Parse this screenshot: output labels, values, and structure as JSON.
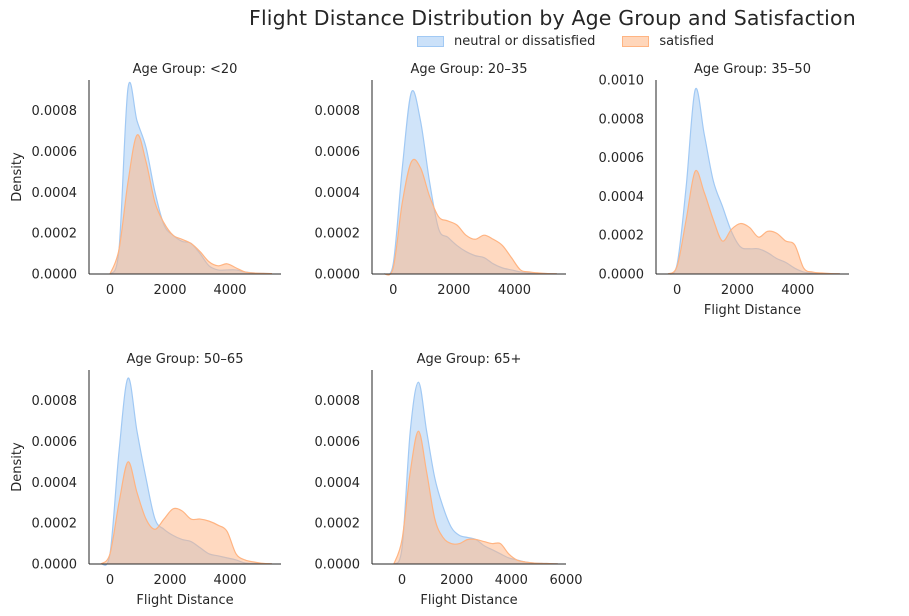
{
  "chart_data": {
    "type": "area",
    "title": "Flight Distance Distribution by Age Group and Satisfaction",
    "legend": {
      "placement": "top-center"
    },
    "series_names": [
      "neutral or dissatisfied",
      "satisfied"
    ],
    "colors": {
      "neutral or dissatisfied": "#a1c9f4",
      "satisfied": "#ffb482"
    },
    "grid": false,
    "x_grid": [
      -300,
      0,
      300,
      600,
      900,
      1200,
      1500,
      1800,
      2100,
      2400,
      2700,
      3000,
      3300,
      3600,
      3900,
      4200,
      4500,
      4800,
      5100,
      5400,
      5700,
      6000
    ],
    "panels": [
      {
        "title": "Age Group: <20",
        "xlabel": "",
        "ylabel": "Density",
        "xlim": [
          -700,
          5700
        ],
        "ylim": [
          0,
          0.00095
        ],
        "xticks": [
          0,
          2000,
          4000
        ],
        "xtick_labels": [
          "0",
          "2000",
          "4000"
        ],
        "yticks": [
          0,
          0.0002,
          0.0004,
          0.0006,
          0.0008
        ],
        "ytick_labels": [
          "0.0000",
          "0.0002",
          "0.0004",
          "0.0006",
          "0.0008"
        ],
        "series": [
          {
            "name": "neutral or dissatisfied",
            "x_start": 0,
            "x_end": 5400,
            "values": [
              0,
              0.00012,
              0.00091,
              0.00075,
              0.00062,
              0.0004,
              0.00024,
              0.00019,
              0.00016,
              0.00015,
              0.0001,
              4e-05,
              2e-05,
              2e-05,
              2e-05,
              1e-05,
              5e-06,
              3e-06,
              2e-06
            ]
          },
          {
            "name": "satisfied",
            "x_start": 0,
            "x_end": 5400,
            "values": [
              0,
              0.00012,
              0.00045,
              0.00068,
              0.00055,
              0.00035,
              0.00025,
              0.00019,
              0.00017,
              0.00015,
              0.00011,
              6e-05,
              4e-05,
              5e-05,
              3e-05,
              1e-05,
              5e-06,
              3e-06,
              2e-06
            ]
          }
        ]
      },
      {
        "title": "Age Group: 20–35",
        "xlabel": "",
        "ylabel": "",
        "xlim": [
          -700,
          5700
        ],
        "ylim": [
          0,
          0.00095
        ],
        "xticks": [
          0,
          2000,
          4000
        ],
        "xtick_labels": [
          "0",
          "2000",
          "4000"
        ],
        "yticks": [
          0,
          0.0002,
          0.0004,
          0.0006,
          0.0008
        ],
        "ytick_labels": [
          "0.0000",
          "0.0002",
          "0.0004",
          "0.0006",
          "0.0008"
        ],
        "series": [
          {
            "name": "neutral or dissatisfied",
            "x_start": -300,
            "x_end": 5400,
            "values": [
              0,
              5e-05,
              0.00052,
              0.00089,
              0.00075,
              0.00045,
              0.00022,
              0.00018,
              0.00014,
              0.00011,
              9e-05,
              8e-05,
              5e-05,
              3e-05,
              2e-05,
              1e-05,
              5e-06,
              3e-06,
              2e-06,
              1e-06
            ]
          },
          {
            "name": "satisfied",
            "x_start": -300,
            "x_end": 5400,
            "values": [
              0,
              3e-05,
              0.00035,
              0.00055,
              0.00052,
              0.00038,
              0.00028,
              0.00026,
              0.00024,
              0.00019,
              0.00017,
              0.00019,
              0.00017,
              0.00014,
              8e-05,
              2e-05,
              1e-05,
              5e-06,
              2e-06,
              1e-06
            ]
          }
        ]
      },
      {
        "title": "Age Group: 35–50",
        "xlabel": "Flight Distance",
        "ylabel": "",
        "xlim": [
          -700,
          5700
        ],
        "ylim": [
          0,
          0.001
        ],
        "xticks": [
          0,
          2000,
          4000
        ],
        "xtick_labels": [
          "0",
          "2000",
          "4000"
        ],
        "yticks": [
          0,
          0.0002,
          0.0004,
          0.0006,
          0.0008,
          0.001
        ],
        "ytick_labels": [
          "0.0000",
          "0.0002",
          "0.0004",
          "0.0006",
          "0.0008",
          "0.0010"
        ],
        "series": [
          {
            "name": "neutral or dissatisfied",
            "x_start": -300,
            "x_end": 5400,
            "values": [
              0,
              5e-05,
              0.00045,
              0.00095,
              0.00072,
              0.00048,
              0.00035,
              0.00022,
              0.00014,
              0.00013,
              0.00013,
              0.00011,
              8e-05,
              6e-05,
              3e-05,
              1e-05,
              5e-06,
              3e-06,
              2e-06,
              1e-06
            ]
          },
          {
            "name": "satisfied",
            "x_start": -300,
            "x_end": 5400,
            "values": [
              0,
              4e-05,
              0.00028,
              0.00053,
              0.00042,
              0.00028,
              0.00017,
              0.00023,
              0.00026,
              0.00024,
              0.00019,
              0.00022,
              0.00021,
              0.00017,
              0.00015,
              3e-05,
              1e-05,
              5e-06,
              2e-06,
              1e-06
            ]
          }
        ]
      },
      {
        "title": "Age Group: 50–65",
        "xlabel": "Flight Distance",
        "ylabel": "Density",
        "xlim": [
          -700,
          5700
        ],
        "ylim": [
          0,
          0.00095
        ],
        "xticks": [
          0,
          2000,
          4000
        ],
        "xtick_labels": [
          "0",
          "2000",
          "4000"
        ],
        "yticks": [
          0,
          0.0002,
          0.0004,
          0.0006,
          0.0008
        ],
        "ytick_labels": [
          "0.0000",
          "0.0002",
          "0.0004",
          "0.0006",
          "0.0008"
        ],
        "series": [
          {
            "name": "neutral or dissatisfied",
            "x_start": -300,
            "x_end": 5400,
            "values": [
              0,
              5e-05,
              0.00055,
              0.00091,
              0.00065,
              0.00042,
              0.00022,
              0.00017,
              0.00014,
              0.00012,
              0.00011,
              8e-05,
              5e-05,
              4e-05,
              3e-05,
              2e-05,
              5e-06,
              3e-06,
              2e-06,
              1e-06
            ]
          },
          {
            "name": "satisfied",
            "x_start": -300,
            "x_end": 5400,
            "values": [
              0,
              5e-05,
              0.0003,
              0.0005,
              0.00035,
              0.00022,
              0.00017,
              0.00022,
              0.00027,
              0.00026,
              0.00022,
              0.00022,
              0.00021,
              0.00019,
              0.00016,
              5e-05,
              2e-05,
              1e-05,
              3e-06,
              1e-06
            ]
          }
        ]
      },
      {
        "title": "Age Group: 65+",
        "xlabel": "Flight Distance",
        "ylabel": "",
        "xlim": [
          -1100,
          6000
        ],
        "ylim": [
          0,
          0.00095
        ],
        "xticks": [
          0,
          2000,
          4000,
          6000
        ],
        "xtick_labels": [
          "0",
          "2000",
          "4000",
          "6000"
        ],
        "yticks": [
          0,
          0.0002,
          0.0004,
          0.0006,
          0.0008
        ],
        "ytick_labels": [
          "0.0000",
          "0.0002",
          "0.0004",
          "0.0006",
          "0.0008"
        ],
        "series": [
          {
            "name": "neutral or dissatisfied",
            "x_start": -300,
            "x_end": 5700,
            "values": [
              0,
              8e-05,
              0.00065,
              0.00089,
              0.00065,
              0.00042,
              0.00028,
              0.00018,
              0.00014,
              0.00013,
              0.00012,
              9e-05,
              7e-05,
              5e-05,
              3e-05,
              2e-05,
              1e-05,
              5e-06,
              3e-06,
              2e-06,
              1e-06
            ]
          },
          {
            "name": "satisfied",
            "x_start": -300,
            "x_end": 5700,
            "values": [
              0,
              0.00012,
              0.00045,
              0.00065,
              0.00045,
              0.00022,
              0.00013,
              0.0001,
              0.0001,
              0.00012,
              0.00012,
              0.00011,
              0.0001,
              0.0001,
              5e-05,
              2e-05,
              1e-05,
              5e-06,
              3e-06,
              2e-06,
              1e-06
            ]
          }
        ]
      }
    ]
  }
}
